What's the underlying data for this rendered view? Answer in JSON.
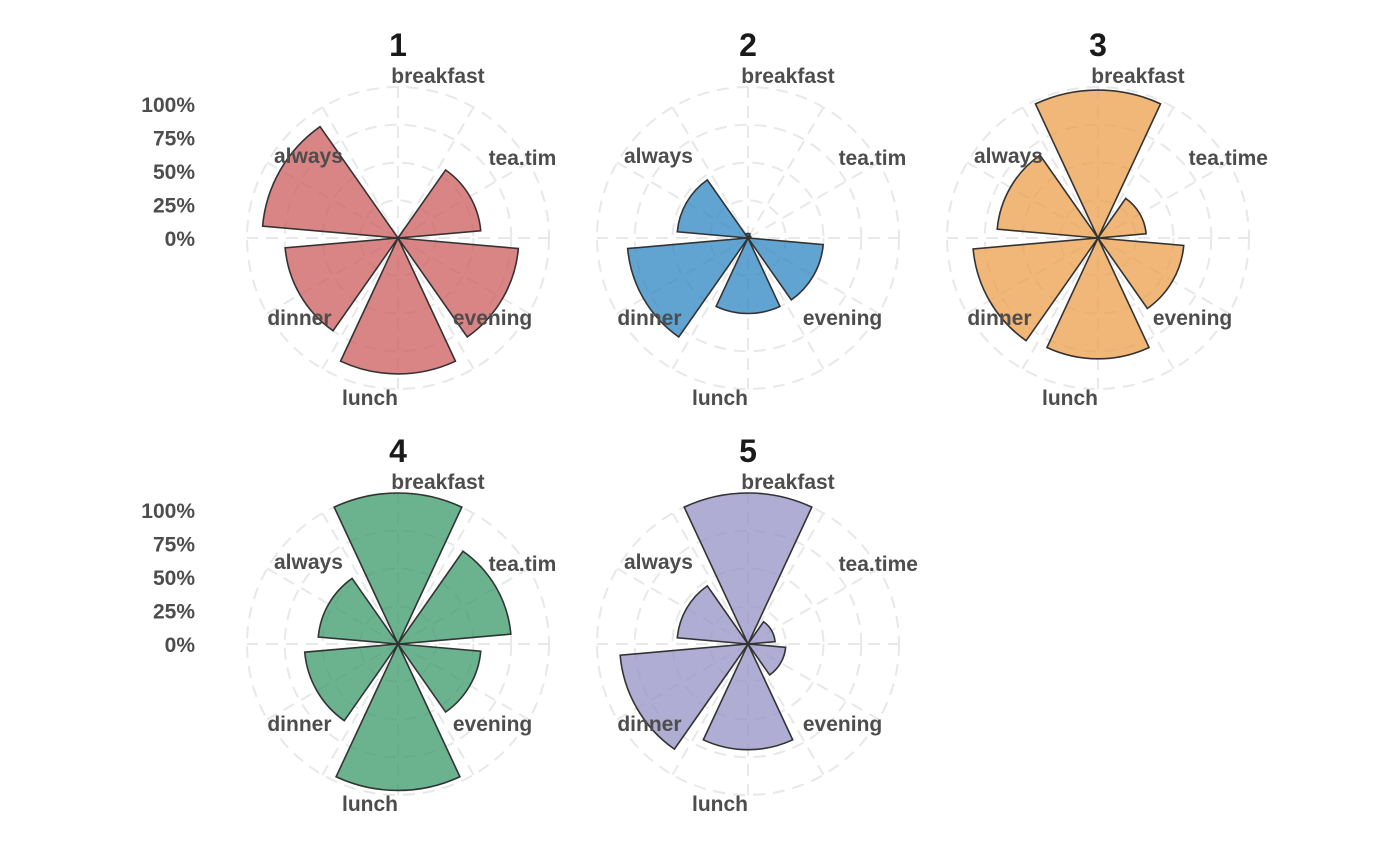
{
  "chart_data": {
    "type": "bar",
    "coordinate_system": "polar",
    "categories": [
      "breakfast",
      "tea.time",
      "evening",
      "lunch",
      "dinner",
      "always"
    ],
    "category_labels": [
      "breakfast",
      "tea.time",
      "evening",
      "lunch",
      "dinner",
      "always"
    ],
    "radial_ticks": [
      "0%",
      "25%",
      "50%",
      "75%",
      "100%"
    ],
    "ylim": [
      0,
      1
    ],
    "grid": true,
    "panels": [
      {
        "title": "1",
        "color": "#CD5C5C",
        "show_ticks": true,
        "labels": [
          "breakfast",
          "tea.tim",
          "evening",
          "lunch",
          "dinner",
          "always"
        ],
        "values": [
          0.0,
          0.55,
          0.8,
          0.9,
          0.75,
          0.9
        ]
      },
      {
        "title": "2",
        "color": "#2E86C1",
        "show_ticks": false,
        "labels": [
          "breakfast",
          "tea.tim",
          "evening",
          "lunch",
          "dinner",
          "always"
        ],
        "values": [
          0.03,
          0.02,
          0.5,
          0.5,
          0.8,
          0.47
        ]
      },
      {
        "title": "3",
        "color": "#EB9F4B",
        "show_ticks": false,
        "labels": [
          "breakfast",
          "tea.time",
          "evening",
          "lunch",
          "dinner",
          "always"
        ],
        "values": [
          0.98,
          0.32,
          0.57,
          0.8,
          0.83,
          0.67
        ]
      },
      {
        "title": "4",
        "color": "#3A9A6A",
        "show_ticks": true,
        "labels": [
          "breakfast",
          "tea.tim",
          "evening",
          "lunch",
          "dinner",
          "always"
        ],
        "values": [
          1.0,
          0.75,
          0.55,
          0.97,
          0.62,
          0.53
        ]
      },
      {
        "title": "5",
        "color": "#9491C4",
        "show_ticks": false,
        "labels": [
          "breakfast",
          "tea.time",
          "evening",
          "lunch",
          "dinner",
          "always"
        ],
        "values": [
          1.0,
          0.18,
          0.25,
          0.7,
          0.85,
          0.47
        ]
      }
    ]
  }
}
